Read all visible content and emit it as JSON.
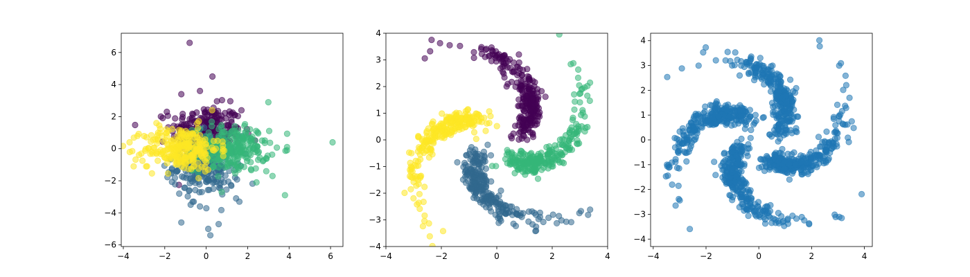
{
  "chart_data": [
    {
      "type": "scatter",
      "title": "",
      "xlabel": "",
      "ylabel": "",
      "xlim": [
        -4.1,
        6.6
      ],
      "ylim": [
        -6.1,
        7.2
      ],
      "xticks": [
        -4,
        -2,
        0,
        2,
        4,
        6
      ],
      "yticks": [
        -6,
        -4,
        -2,
        0,
        2,
        4,
        6
      ],
      "xtick_labels": [
        "−4",
        "−2",
        "0",
        "2",
        "4",
        "6"
      ],
      "ytick_labels": [
        "−6",
        "−4",
        "−2",
        "0",
        "2",
        "4",
        "6"
      ],
      "grid": false,
      "marker_alpha": 0.55,
      "series": [
        {
          "color": "#440154",
          "pattern": "gaussian_cluster",
          "center": [
            0,
            1.1
          ],
          "spread": [
            0.85,
            0.8
          ],
          "count": 260,
          "outliers": [
            [
              -0.8,
              6.6
            ],
            [
              0.3,
              4.5
            ],
            [
              -0.3,
              3.6
            ],
            [
              -1.2,
              3.4
            ],
            [
              1.7,
              2.4
            ],
            [
              -1.9,
              2.3
            ]
          ]
        },
        {
          "color": "#31688e",
          "pattern": "gaussian_cluster",
          "center": [
            0,
            -1.1
          ],
          "spread": [
            0.8,
            0.95
          ],
          "count": 260,
          "outliers": [
            [
              -1.2,
              -4.6
            ],
            [
              0.1,
              -5.0
            ],
            [
              0.2,
              -5.4
            ],
            [
              0.6,
              -4.7
            ],
            [
              1.6,
              -3.3
            ],
            [
              -0.3,
              -3.6
            ]
          ]
        },
        {
          "color": "#35b779",
          "pattern": "gaussian_cluster",
          "center": [
            1.2,
            0
          ],
          "spread": [
            0.9,
            0.7
          ],
          "count": 260,
          "outliers": [
            [
              6.1,
              0.4
            ],
            [
              3.0,
              2.9
            ],
            [
              3.8,
              -2.9
            ],
            [
              3.9,
              0.1
            ],
            [
              3.2,
              -1.7
            ],
            [
              2.9,
              -1.4
            ]
          ]
        },
        {
          "color": "#fde725",
          "pattern": "gaussian_cluster",
          "center": [
            -1.2,
            0
          ],
          "spread": [
            0.9,
            0.7
          ],
          "count": 260,
          "outliers": [
            [
              -3.7,
              0.4
            ],
            [
              -3.5,
              -1.1
            ],
            [
              -2.9,
              -1.1
            ],
            [
              -2.4,
              1.6
            ]
          ]
        }
      ]
    },
    {
      "type": "scatter",
      "title": "",
      "xlabel": "",
      "ylabel": "",
      "xlim": [
        -4,
        4
      ],
      "ylim": [
        -4,
        4
      ],
      "xticks": [
        -4,
        -2,
        0,
        2,
        4
      ],
      "yticks": [
        -4,
        -3,
        -2,
        -1,
        0,
        1,
        2,
        3,
        4
      ],
      "xtick_labels": [
        "−4",
        "−2",
        "0",
        "2",
        "4"
      ],
      "ytick_labels": [
        "−4",
        "−3",
        "−2",
        "−1",
        "0",
        "1",
        "2",
        "3",
        "4"
      ],
      "grid": false,
      "marker_alpha": 0.55,
      "series": [
        {
          "color": "#440154",
          "pattern": "pinwheel_arm",
          "base_angle_deg": 0,
          "count": 260,
          "extra_rotation": -0.15
        },
        {
          "color": "#31688e",
          "pattern": "pinwheel_arm",
          "base_angle_deg": 180,
          "count": 260,
          "extra_rotation": 0.2
        },
        {
          "color": "#35b779",
          "pattern": "pinwheel_arm",
          "base_angle_deg": 270,
          "count": 260,
          "extra_rotation": 0.1
        },
        {
          "color": "#fde725",
          "pattern": "pinwheel_arm",
          "base_angle_deg": 90,
          "count": 260,
          "extra_rotation": 0.25
        }
      ]
    },
    {
      "type": "scatter",
      "title": "",
      "xlabel": "",
      "ylabel": "",
      "xlim": [
        -4.1,
        4.3
      ],
      "ylim": [
        -4.3,
        4.3
      ],
      "xticks": [
        -4,
        -2,
        0,
        2,
        4
      ],
      "yticks": [
        -4,
        -3,
        -2,
        -1,
        0,
        1,
        2,
        3,
        4
      ],
      "xtick_labels": [
        "−4",
        "−2",
        "0",
        "2",
        "4"
      ],
      "ytick_labels": [
        "−4",
        "−3",
        "−2",
        "−1",
        "0",
        "1",
        "2",
        "3",
        "4"
      ],
      "grid": false,
      "marker_alpha": 0.55,
      "series": [
        {
          "color": "#1f77b4",
          "pattern": "pinwheel_all_arms",
          "arm_angles_deg": [
            0,
            90,
            180,
            270
          ],
          "count_per_arm": 300
        }
      ]
    }
  ]
}
